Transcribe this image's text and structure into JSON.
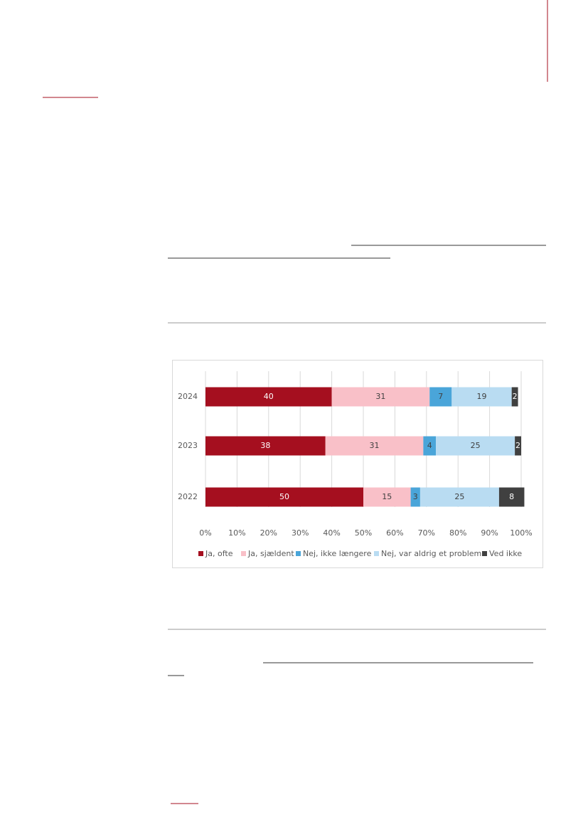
{
  "chart_data": {
    "type": "stacked-bar-horizontal",
    "categories": [
      "2024",
      "2023",
      "2022"
    ],
    "series": [
      {
        "name": "Ja, ofte",
        "color": "#a50f1f",
        "values": [
          40,
          38,
          50
        ]
      },
      {
        "name": "Ja, sjældent",
        "color": "#f9c0c8",
        "values": [
          31,
          31,
          15
        ]
      },
      {
        "name": "Nej, ikke længere",
        "color": "#4aa5d9",
        "values": [
          7,
          4,
          3
        ]
      },
      {
        "name": "Nej, var aldrig et problem",
        "color": "#b9dcf2",
        "values": [
          19,
          25,
          25
        ]
      },
      {
        "name": "Ved ikke",
        "color": "#404040",
        "values": [
          2,
          2,
          8
        ]
      }
    ],
    "xlim": [
      0,
      100
    ],
    "xticks": [
      {
        "value": 0,
        "label": "0%"
      },
      {
        "value": 10,
        "label": "10%"
      },
      {
        "value": 20,
        "label": "20%"
      },
      {
        "value": 30,
        "label": "30%"
      },
      {
        "value": 40,
        "label": "40%"
      },
      {
        "value": 50,
        "label": "50%"
      },
      {
        "value": 60,
        "label": "60%"
      },
      {
        "value": 70,
        "label": "70%"
      },
      {
        "value": 80,
        "label": "80%"
      },
      {
        "value": 90,
        "label": "90%"
      },
      {
        "value": 100,
        "label": "100%"
      }
    ],
    "grid": true,
    "legend": "bottom"
  }
}
